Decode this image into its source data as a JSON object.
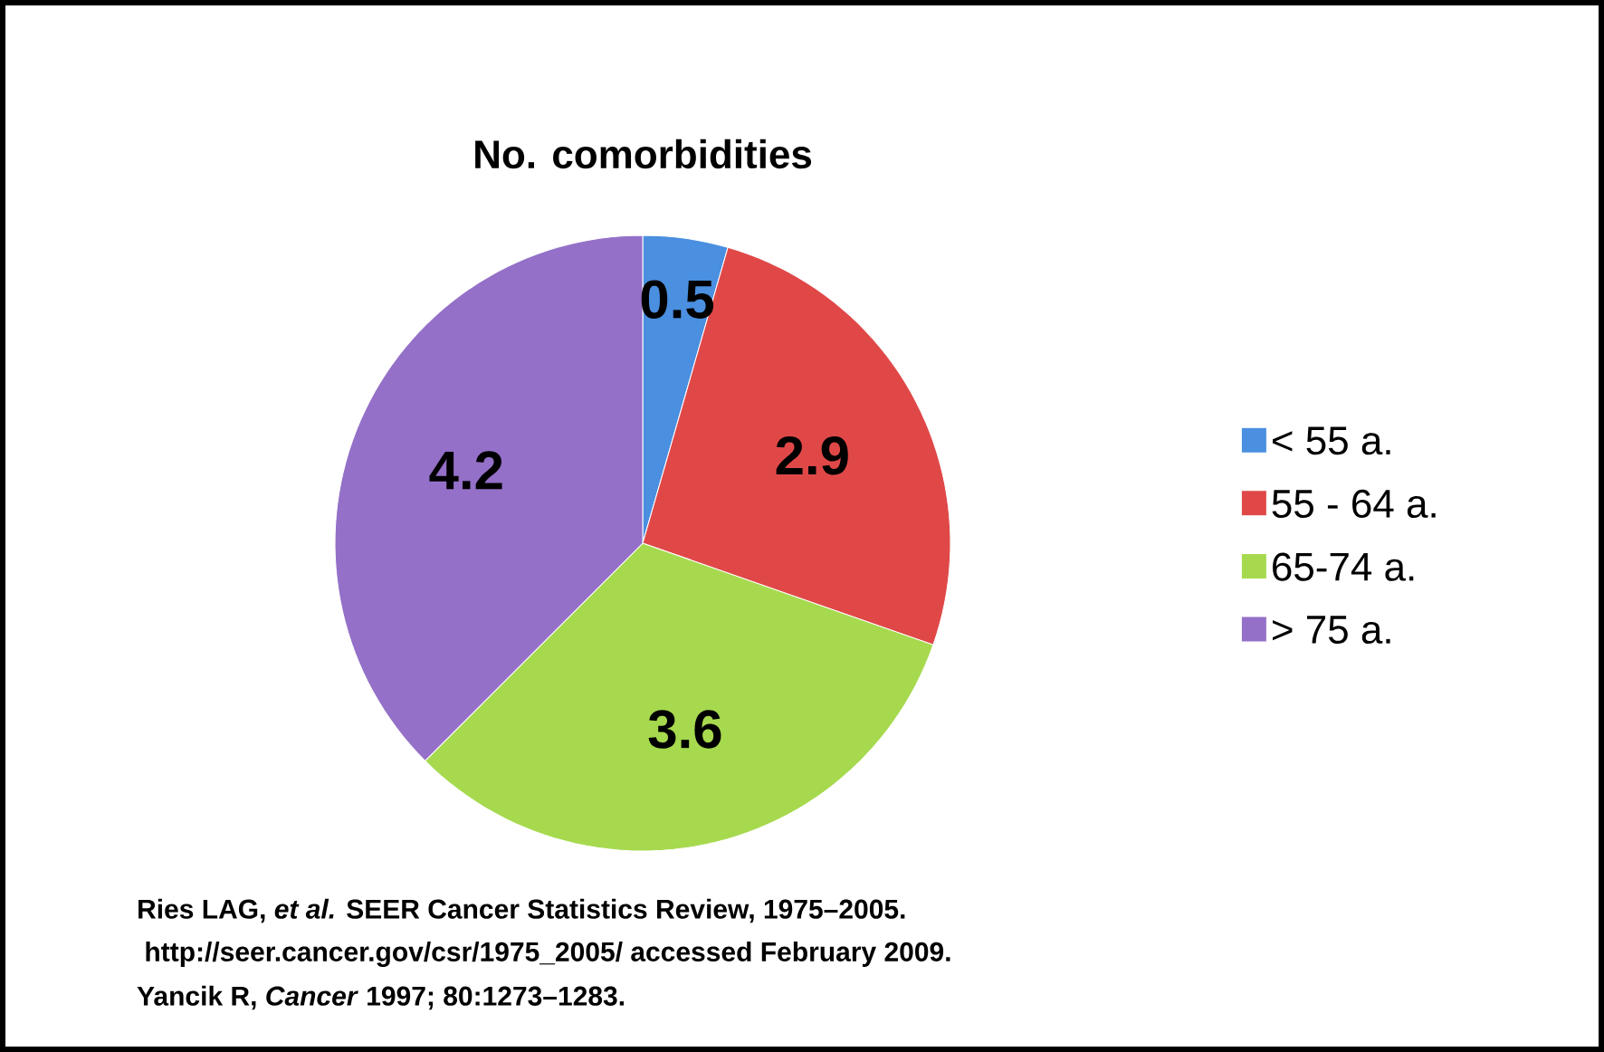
{
  "chart_data": {
    "type": "pie",
    "title": "No. comorbidities",
    "categories": [
      "< 55 a.",
      "55 - 64 a.",
      "65-74 a.",
      "> 75 a."
    ],
    "values": [
      0.5,
      2.9,
      3.6,
      4.2
    ],
    "colors": [
      "#4a8fe0",
      "#e04848",
      "#a6d94e",
      "#9470c8"
    ],
    "data_labels": true,
    "legend": "right",
    "annotations": [
      "Ries LAG, *et al.* SEER Cancer Statistics Review, 1975–2005.",
      " http://seer.cancer.gov/csr/1975_2005/ accessed February 2009.",
      "Yancik R, *Cancer* 1997; 80:1273–1283."
    ]
  }
}
